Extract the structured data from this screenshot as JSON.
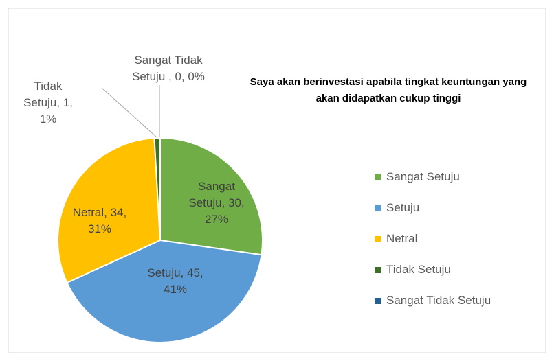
{
  "chart_data": {
    "type": "pie",
    "title": "Saya akan berinvestasi apabila tingkat keuntungan yang akan didapatkan cukup tinggi",
    "categories": [
      "Sangat Setuju",
      "Setuju",
      "Netral",
      "Tidak Setuju",
      "Sangat Tidak Setuju"
    ],
    "values": [
      30,
      45,
      34,
      1,
      0
    ],
    "value_labels": [
      "Sangat Setuju, 30, 27%",
      "Setuju, 45, 41%",
      "Netral, 34, 31%",
      "Tidak Setuju, 1, 1%",
      "Sangat Tidak Setuju , 0, 0%"
    ],
    "colors": [
      "#70ad47",
      "#5b9bd5",
      "#ffc000",
      "#3f6e2a",
      "#255e91"
    ],
    "legend": "right"
  }
}
